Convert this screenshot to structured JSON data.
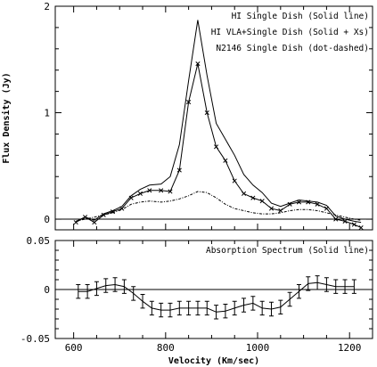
{
  "chart_data": [
    {
      "type": "line",
      "ylabel": "Flux Density (Jy)",
      "xlim": [
        560,
        1250
      ],
      "ylim": [
        -0.1,
        2.0
      ],
      "yticks": [
        0,
        1,
        2
      ],
      "ytick_labels": [
        "0",
        "1",
        "2"
      ],
      "xticks": [
        600,
        800,
        1000,
        1200
      ],
      "grid": false,
      "zero_line": true,
      "legend": {
        "placement": "top-right"
      },
      "series": [
        {
          "name": "HI Single Dish (Solid line)",
          "style": "solid",
          "color": "#000000",
          "x": [
            605,
            625,
            645,
            665,
            685,
            705,
            725,
            745,
            765,
            790,
            810,
            830,
            850,
            870,
            890,
            910,
            930,
            950,
            970,
            990,
            1010,
            1030,
            1050,
            1070,
            1090,
            1110,
            1130,
            1150,
            1170,
            1190,
            1210,
            1225
          ],
          "y": [
            -0.02,
            0.02,
            -0.01,
            0.05,
            0.08,
            0.12,
            0.22,
            0.28,
            0.32,
            0.33,
            0.4,
            0.7,
            1.3,
            1.87,
            1.35,
            0.9,
            0.75,
            0.6,
            0.42,
            0.32,
            0.25,
            0.15,
            0.12,
            0.15,
            0.18,
            0.17,
            0.16,
            0.13,
            0.03,
            0.0,
            -0.02,
            -0.03
          ]
        },
        {
          "name": "HI VLA+Single Dish (Solid + Xs)",
          "style": "solid-x",
          "color": "#000000",
          "x": [
            605,
            625,
            645,
            665,
            685,
            705,
            725,
            745,
            765,
            790,
            810,
            830,
            850,
            870,
            890,
            910,
            930,
            950,
            970,
            990,
            1010,
            1030,
            1050,
            1070,
            1090,
            1110,
            1130,
            1150,
            1170,
            1190,
            1210,
            1225
          ],
          "y": [
            -0.03,
            0.02,
            -0.03,
            0.04,
            0.07,
            0.1,
            0.2,
            0.24,
            0.27,
            0.27,
            0.26,
            0.46,
            1.1,
            1.46,
            1.0,
            0.68,
            0.55,
            0.36,
            0.24,
            0.2,
            0.17,
            0.1,
            0.08,
            0.14,
            0.16,
            0.16,
            0.14,
            0.1,
            0.0,
            -0.02,
            -0.05,
            -0.08
          ]
        },
        {
          "name": "N2146 Single Dish (dot-dashed)",
          "style": "dot-dashed",
          "color": "#000000",
          "x": [
            605,
            625,
            645,
            665,
            685,
            705,
            725,
            745,
            765,
            790,
            810,
            830,
            850,
            870,
            890,
            910,
            930,
            950,
            970,
            990,
            1010,
            1030,
            1050,
            1070,
            1090,
            1110,
            1130,
            1150,
            1170,
            1190,
            1210,
            1225
          ],
          "y": [
            -0.02,
            0.0,
            0.02,
            0.04,
            0.06,
            0.09,
            0.14,
            0.16,
            0.17,
            0.16,
            0.17,
            0.19,
            0.22,
            0.26,
            0.25,
            0.2,
            0.14,
            0.1,
            0.08,
            0.06,
            0.05,
            0.05,
            0.06,
            0.08,
            0.09,
            0.09,
            0.08,
            0.06,
            0.04,
            0.02,
            0.0,
            -0.01
          ]
        }
      ]
    },
    {
      "type": "line",
      "xlabel": "Velocity (Km/sec)",
      "xlim": [
        560,
        1250
      ],
      "ylim": [
        -0.05,
        0.05
      ],
      "yticks": [
        -0.05,
        0,
        0.05
      ],
      "ytick_labels": [
        "-0.05",
        "0",
        "0.05"
      ],
      "xticks": [
        600,
        800,
        1000,
        1200
      ],
      "xtick_labels": [
        "600",
        "800",
        "1000",
        "1200"
      ],
      "grid": false,
      "zero_line": true,
      "legend": {
        "placement": "top-right"
      },
      "series": [
        {
          "name": "Absorption Spectrum (Solid line)",
          "style": "solid-errorbars",
          "color": "#000000",
          "error": 0.007,
          "x": [
            610,
            630,
            650,
            670,
            690,
            710,
            730,
            750,
            770,
            790,
            810,
            830,
            850,
            870,
            890,
            910,
            930,
            950,
            970,
            990,
            1010,
            1030,
            1050,
            1070,
            1090,
            1110,
            1130,
            1150,
            1170,
            1190,
            1210
          ],
          "y": [
            -0.002,
            -0.002,
            0.001,
            0.004,
            0.005,
            0.003,
            -0.004,
            -0.012,
            -0.019,
            -0.021,
            -0.021,
            -0.019,
            -0.019,
            -0.019,
            -0.019,
            -0.023,
            -0.022,
            -0.019,
            -0.016,
            -0.014,
            -0.019,
            -0.02,
            -0.018,
            -0.01,
            -0.002,
            0.006,
            0.007,
            0.005,
            0.003,
            0.003,
            0.003
          ]
        }
      ]
    }
  ]
}
